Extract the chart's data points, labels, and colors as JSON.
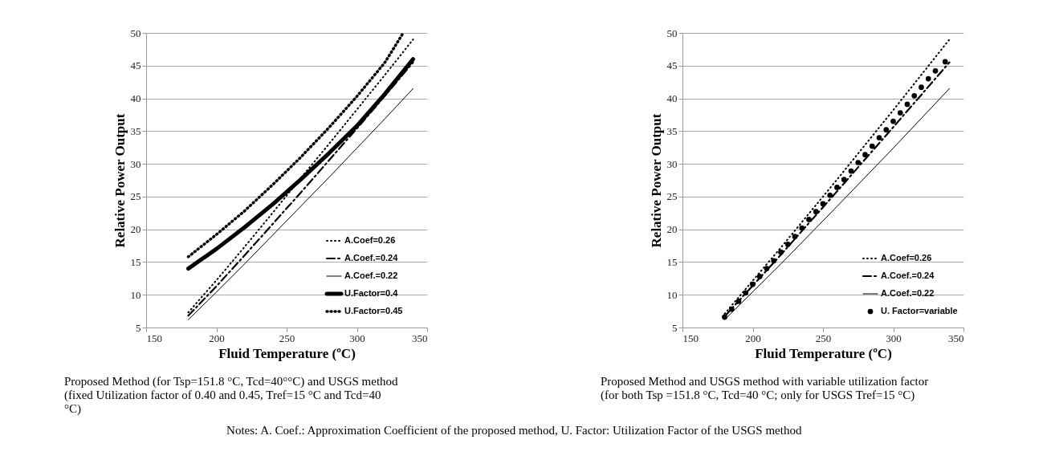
{
  "chart_data": [
    {
      "type": "line",
      "xlabel": "Fluid Temperature (ºC)",
      "ylabel": "Relative Power Output",
      "xlim": [
        150,
        350
      ],
      "ylim": [
        5,
        50
      ],
      "xticks": [
        150,
        200,
        250,
        300,
        350
      ],
      "yticks": [
        5,
        10,
        15,
        20,
        25,
        30,
        35,
        40,
        45,
        50
      ],
      "grid": "y",
      "legend": "bottom right",
      "annotations": [
        "Proposed Method (for Tsp=151.8 °C, Tcd=40°°C) and USGS method (fixed Utilization factor of 0.40 and 0.45, Tref=15 °C and Tcd=40 °C)"
      ],
      "series": [
        {
          "name": "A.Coef=0.26",
          "color": "#000000",
          "line_style": "dotted",
          "x": [
            180,
            200,
            220,
            240,
            260,
            280,
            300,
            320,
            340
          ],
          "values": [
            7.3,
            12.2,
            17.3,
            22.5,
            27.8,
            33.0,
            38.3,
            43.6,
            49.0
          ]
        },
        {
          "name": "A.Coef.=0.24",
          "color": "#000000",
          "line_style": "dashed",
          "x": [
            180,
            200,
            220,
            240,
            260,
            280,
            300,
            320,
            340
          ],
          "values": [
            6.8,
            11.3,
            16.0,
            20.8,
            25.6,
            30.5,
            35.4,
            40.4,
            45.5
          ]
        },
        {
          "name": "A.Coef.=0.22",
          "color": "#000000",
          "line_style": "solid",
          "x": [
            180,
            200,
            220,
            240,
            260,
            280,
            300,
            320,
            340
          ],
          "values": [
            6.2,
            10.4,
            14.7,
            19.1,
            23.5,
            27.9,
            32.4,
            36.9,
            41.5
          ]
        },
        {
          "name": "U.Factor=0.4",
          "color": "#000000",
          "line_style": "solid",
          "x": [
            180,
            200,
            220,
            240,
            260,
            280,
            300,
            320,
            340
          ],
          "values": [
            14.0,
            17.0,
            20.3,
            23.8,
            27.6,
            31.6,
            35.8,
            40.7,
            46.0
          ]
        },
        {
          "name": "U.Factor=0.45",
          "color": "#000000",
          "line_style": "dotted",
          "x": [
            180,
            200,
            220,
            240,
            260,
            280,
            300,
            320,
            333
          ],
          "values": [
            15.8,
            19.2,
            22.8,
            26.8,
            31.0,
            35.5,
            40.3,
            45.5,
            50.0
          ]
        }
      ]
    },
    {
      "type": "line",
      "xlabel": "Fluid Temperature (ºC)",
      "ylabel": "Relative Power Output",
      "xlim": [
        150,
        350
      ],
      "ylim": [
        5,
        50
      ],
      "xticks": [
        150,
        200,
        250,
        300,
        350
      ],
      "yticks": [
        5,
        10,
        15,
        20,
        25,
        30,
        35,
        40,
        45,
        50
      ],
      "grid": "y",
      "legend": "bottom right",
      "annotations": [
        "Proposed Method and USGS method with variable utilization factor (for both Tsp =151.8 °C, Tcd=40 °C; only for USGS Tref=15 °C)",
        "Notes: A. Coef.: Approximation Coefficient of the proposed method, U. Factor: Utilization Factor of the USGS method"
      ],
      "series": [
        {
          "name": "A.Coef=0.26",
          "color": "#000000",
          "line_style": "dotted",
          "x": [
            180,
            220,
            260,
            300,
            340
          ],
          "values": [
            7.1,
            17.2,
            27.6,
            38.2,
            49.0
          ]
        },
        {
          "name": "A.Coef.=0.24",
          "color": "#000000",
          "line_style": "dashed",
          "x": [
            180,
            220,
            260,
            300,
            340
          ],
          "values": [
            6.7,
            16.1,
            25.8,
            35.6,
            45.5
          ]
        },
        {
          "name": "A.Coef.=0.22",
          "color": "#000000",
          "line_style": "solid",
          "x": [
            180,
            220,
            260,
            300,
            340
          ],
          "values": [
            6.2,
            14.7,
            23.5,
            32.4,
            41.5
          ]
        },
        {
          "name": "U. Factor=variable",
          "type": "scatter",
          "marker": "circle",
          "color": "#000000",
          "x": [
            180,
            185,
            190,
            195,
            200,
            205,
            210,
            215,
            220,
            225,
            230,
            235,
            240,
            245,
            250,
            255,
            260,
            265,
            270,
            275,
            280,
            285,
            290,
            295,
            300,
            305,
            310,
            315,
            320,
            325,
            330,
            337
          ],
          "values": [
            6.6,
            7.8,
            9.0,
            10.3,
            11.6,
            12.8,
            14.0,
            15.2,
            16.5,
            17.7,
            18.9,
            20.2,
            21.5,
            22.7,
            23.9,
            25.2,
            26.4,
            27.6,
            28.9,
            30.2,
            31.4,
            32.7,
            34.0,
            35.2,
            36.5,
            37.8,
            39.1,
            40.4,
            41.7,
            43.0,
            44.2,
            45.6
          ]
        }
      ]
    }
  ]
}
